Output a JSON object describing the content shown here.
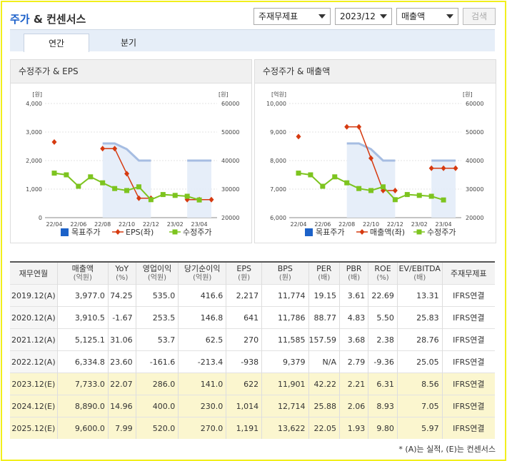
{
  "header": {
    "title_part1": "주가",
    "title_part2": " & 컨센서스",
    "filter1": "주재무제표",
    "filter2": "2023/12",
    "filter3": "매출액",
    "search_label": "검색"
  },
  "tabs": [
    {
      "label": "연간",
      "active": true
    },
    {
      "label": "분기",
      "active": false
    }
  ],
  "chart_data": [
    {
      "type": "line",
      "title": "수정주가 & EPS",
      "left_unit": "[원]",
      "right_unit": "[원]",
      "left_ticks": [
        "4,000",
        "3,000",
        "2,000",
        "1,000",
        "0"
      ],
      "right_ticks": [
        "60000",
        "50000",
        "40000",
        "30000",
        "20000"
      ],
      "ylim_left": [
        0,
        4000
      ],
      "ylim_right": [
        20000,
        60000
      ],
      "x_ticks": [
        "22/04",
        "22/06",
        "22/08",
        "22/10",
        "22/12",
        "23/02",
        "23/04"
      ],
      "series": [
        {
          "name": "목표주가",
          "axis": "right",
          "color": "#1c62c9",
          "values": [
            null,
            null,
            null,
            null,
            46000,
            46000,
            44000,
            40000,
            40000,
            null,
            null,
            40000,
            40000,
            40000
          ]
        },
        {
          "name": "EPS(좌)",
          "axis": "left",
          "color": "#d63a10",
          "values": [
            2650,
            null,
            null,
            null,
            2420,
            2420,
            1540,
            680,
            680,
            null,
            null,
            630,
            630,
            630
          ]
        },
        {
          "name": "수정주가",
          "axis": "right",
          "color": "#7dc41f",
          "values": [
            35600,
            35000,
            31000,
            34300,
            32200,
            30200,
            29500,
            30800,
            26300,
            28100,
            27800,
            27500,
            26200,
            null
          ]
        }
      ]
    },
    {
      "type": "line",
      "title": "수정주가 & 매출액",
      "left_unit": "[억원]",
      "right_unit": "[원]",
      "left_ticks": [
        "10,000",
        "9,000",
        "8,000",
        "7,000",
        "6,000"
      ],
      "right_ticks": [
        "60000",
        "50000",
        "40000",
        "30000",
        "20000"
      ],
      "ylim_left": [
        6000,
        10000
      ],
      "ylim_right": [
        20000,
        60000
      ],
      "x_ticks": [
        "22/04",
        "22/06",
        "22/08",
        "22/10",
        "22/12",
        "23/02",
        "23/04"
      ],
      "series": [
        {
          "name": "목표주가",
          "axis": "right",
          "color": "#1c62c9",
          "values": [
            null,
            null,
            null,
            null,
            46000,
            46000,
            44000,
            40000,
            40000,
            null,
            null,
            40000,
            40000,
            40000
          ]
        },
        {
          "name": "매출액(좌)",
          "axis": "left",
          "color": "#d63a10",
          "values": [
            8840,
            null,
            null,
            null,
            9180,
            9180,
            8080,
            6950,
            6950,
            null,
            null,
            7730,
            7730,
            7730
          ]
        },
        {
          "name": "수정주가",
          "axis": "right",
          "color": "#7dc41f",
          "values": [
            35600,
            35000,
            31000,
            34300,
            32200,
            30200,
            29500,
            30800,
            26300,
            28100,
            27800,
            27500,
            26200,
            null
          ]
        }
      ]
    }
  ],
  "table": {
    "headers": [
      {
        "main": "재무연월",
        "sub": ""
      },
      {
        "main": "매출액",
        "sub": "(억원)"
      },
      {
        "main": "YoY",
        "sub": "(%)"
      },
      {
        "main": "영업이익",
        "sub": "(억원)"
      },
      {
        "main": "당기순이익",
        "sub": "(억원)"
      },
      {
        "main": "EPS",
        "sub": "(원)"
      },
      {
        "main": "BPS",
        "sub": "(원)"
      },
      {
        "main": "PER",
        "sub": "(배)"
      },
      {
        "main": "PBR",
        "sub": "(배)"
      },
      {
        "main": "ROE",
        "sub": "(%)"
      },
      {
        "main": "EV/EBITDA",
        "sub": "(배)"
      },
      {
        "main": "주재무제표",
        "sub": ""
      }
    ],
    "rows": [
      {
        "estimate": false,
        "cells": [
          "2019.12(A)",
          "3,977.0",
          "74.25",
          "535.0",
          "416.6",
          "2,217",
          "11,774",
          "19.15",
          "3.61",
          "22.69",
          "13.31",
          "IFRS연결"
        ]
      },
      {
        "estimate": false,
        "cells": [
          "2020.12(A)",
          "3,910.5",
          "-1.67",
          "253.5",
          "146.8",
          "641",
          "11,786",
          "88.77",
          "4.83",
          "5.50",
          "25.83",
          "IFRS연결"
        ]
      },
      {
        "estimate": false,
        "cells": [
          "2021.12(A)",
          "5,125.1",
          "31.06",
          "53.7",
          "62.5",
          "270",
          "11,585",
          "157.59",
          "3.68",
          "2.38",
          "28.76",
          "IFRS연결"
        ]
      },
      {
        "estimate": false,
        "cells": [
          "2022.12(A)",
          "6,334.8",
          "23.60",
          "-161.6",
          "-213.4",
          "-938",
          "9,379",
          "N/A",
          "2.79",
          "-9.36",
          "25.05",
          "IFRS연결"
        ]
      },
      {
        "estimate": true,
        "cells": [
          "2023.12(E)",
          "7,733.0",
          "22.07",
          "286.0",
          "141.0",
          "622",
          "11,901",
          "42.22",
          "2.21",
          "6.31",
          "8.56",
          "IFRS연결"
        ]
      },
      {
        "estimate": true,
        "cells": [
          "2024.12(E)",
          "8,890.0",
          "14.96",
          "400.0",
          "230.0",
          "1,014",
          "12,714",
          "25.88",
          "2.06",
          "8.93",
          "7.05",
          "IFRS연결"
        ]
      },
      {
        "estimate": true,
        "cells": [
          "2025.12(E)",
          "9,600.0",
          "7.99",
          "520.0",
          "270.0",
          "1,191",
          "13,622",
          "22.05",
          "1.93",
          "9.80",
          "5.97",
          "IFRS연결"
        ]
      }
    ]
  },
  "note": "* (A)는 실적, (E)는 컨센서스"
}
